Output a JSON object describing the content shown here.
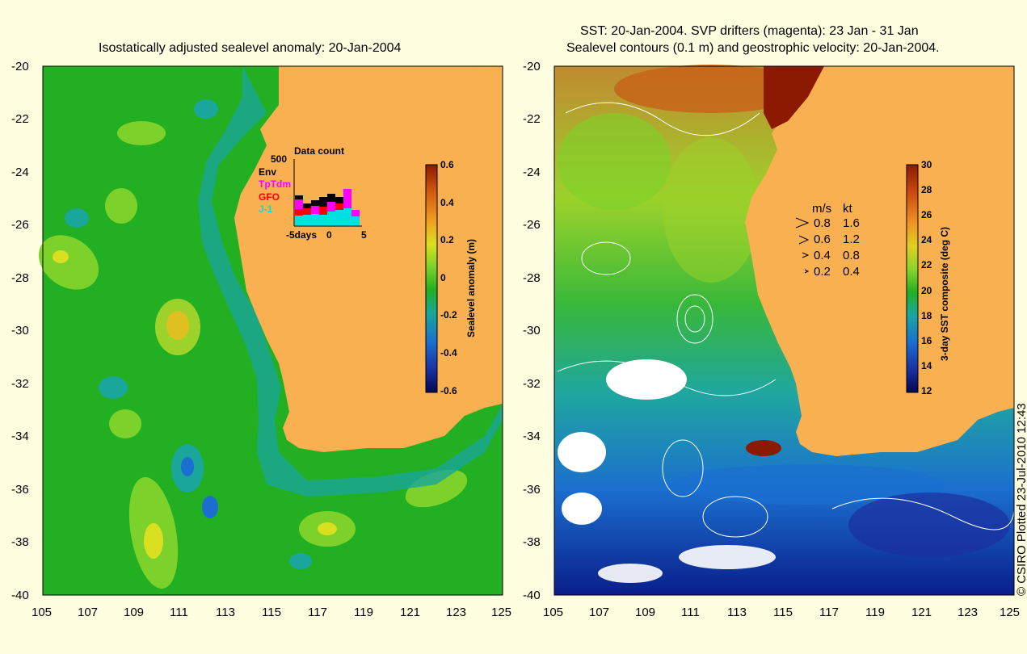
{
  "left_panel": {
    "title": "Isostatically adjusted sealevel anomaly: 20-Jan-2004",
    "y_ticks": [
      "-20",
      "-22",
      "-24",
      "-26",
      "-28",
      "-30",
      "-32",
      "-34",
      "-36",
      "-38",
      "-40"
    ],
    "x_ticks": [
      "105",
      "107",
      "109",
      "111",
      "113",
      "115",
      "117",
      "119",
      "121",
      "123",
      "125"
    ],
    "colorbar": {
      "label": "Sealevel anomaly (m)",
      "ticks": [
        "0.6",
        "0.4",
        "0.2",
        "0",
        "-0.2",
        "-0.4",
        "-0.6"
      ]
    },
    "data_count": {
      "title": "Data count",
      "ymax_label": "500",
      "series": [
        "Env",
        "TpTdm",
        "GFO",
        "J-1"
      ],
      "series_colors": [
        "#000000",
        "#ff00ff",
        "#ff0000",
        "#00e0e0"
      ],
      "x_labels": [
        "-5days",
        "0",
        "5"
      ]
    }
  },
  "right_panel": {
    "title_line1": "SST: 20-Jan-2004. SVP drifters (magenta): 23 Jan - 31 Jan",
    "title_line2": "Sealevel contours (0.1 m) and geostrophic velocity: 20-Jan-2004.",
    "y_ticks": [
      "-20",
      "-22",
      "-24",
      "-26",
      "-28",
      "-30",
      "-32",
      "-34",
      "-36",
      "-38",
      "-40"
    ],
    "x_ticks": [
      "105",
      "107",
      "109",
      "111",
      "113",
      "115",
      "117",
      "119",
      "121",
      "123",
      "125"
    ],
    "colorbar": {
      "label": "3-day SST composite (deg C)",
      "ticks": [
        "30",
        "28",
        "26",
        "24",
        "22",
        "20",
        "18",
        "16",
        "14",
        "12"
      ]
    },
    "velocity_legend": {
      "header_ms": "m/s",
      "header_kt": "kt",
      "rows": [
        {
          "ms": "0.8",
          "kt": "1.6"
        },
        {
          "ms": "0.6",
          "kt": "1.2"
        },
        {
          "ms": "0.4",
          "kt": "0.8"
        },
        {
          "ms": "0.2",
          "kt": "0.4"
        }
      ]
    }
  },
  "credit": "© CSIRO Plotted 23-Jul-2010 12:43",
  "colors": {
    "land": "#f9b050",
    "background": "#fffee0",
    "ocean_mid": "#22b022"
  }
}
